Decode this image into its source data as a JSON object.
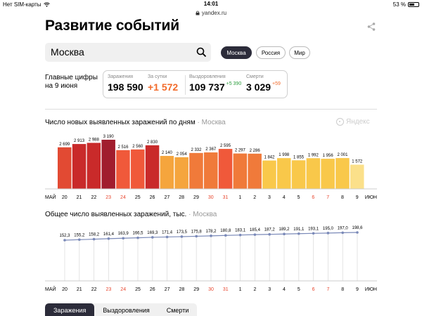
{
  "status_bar": {
    "carrier": "Нет SIM-карты",
    "time": "14:01",
    "battery": "53 %",
    "url": "yandex.ru"
  },
  "page_title": "Развитие событий",
  "search": {
    "value": "Москва"
  },
  "scope_buttons": [
    {
      "label": "Москва",
      "active": true
    },
    {
      "label": "Россия",
      "active": false
    },
    {
      "label": "Мир",
      "active": false
    }
  ],
  "key_figures": {
    "title_line1": "Главные цифры",
    "title_line2": "на 9 июня",
    "stats": [
      {
        "label": "Заражения",
        "value": "198 590",
        "delta": ""
      },
      {
        "label": "За сутки",
        "value": "+1 572",
        "delta": ""
      },
      {
        "label": "Выздоровления",
        "value": "109 737",
        "delta": "+5 390"
      },
      {
        "label": "Смерти",
        "value": "3 029",
        "delta": "+59"
      }
    ]
  },
  "yandex_label": "Яндекс",
  "tabs": [
    {
      "label": "Заражения",
      "active": true
    },
    {
      "label": "Выздоровления",
      "active": false
    },
    {
      "label": "Смерти",
      "active": false
    }
  ],
  "colors": {
    "accent_dark": "#2c2c3a",
    "orange": "#f26b2b",
    "green": "#2e9e3f",
    "red_axis_label": "#e8462e"
  },
  "chart_data": [
    {
      "type": "bar",
      "title": "Число новых выявленных заражений по дням",
      "subtitle": "Москва",
      "month_start_label": "МАЙ",
      "month_end_label": "ИЮН",
      "categories": [
        "20",
        "21",
        "22",
        "23",
        "24",
        "25",
        "26",
        "27",
        "28",
        "29",
        "30",
        "31",
        "1",
        "2",
        "3",
        "4",
        "5",
        "6",
        "7",
        "8",
        "9"
      ],
      "weekend_days": [
        "23",
        "24",
        "30",
        "31",
        "6",
        "7"
      ],
      "values": [
        2699,
        2913,
        2988,
        3190,
        2516,
        2560,
        2830,
        2140,
        2054,
        2332,
        2367,
        2595,
        2297,
        2286,
        1842,
        1998,
        1855,
        1992,
        1956,
        2001,
        1572
      ],
      "value_labels": [
        "2 699",
        "2 913",
        "2 988",
        "3 190",
        "2 516",
        "2 560",
        "2 830",
        "2 140",
        "2 054",
        "2 332",
        "2 367",
        "2 595",
        "2 297",
        "2 286",
        "1 842",
        "1 998",
        "1 855",
        "1 992",
        "1 956",
        "2 001",
        "1 572"
      ],
      "bar_colors": [
        "#e24a33",
        "#c92a2a",
        "#c92a2a",
        "#a11d2e",
        "#f0593a",
        "#f0593a",
        "#c92a2a",
        "#f5a53d",
        "#f5a53d",
        "#f07a3a",
        "#f07a3a",
        "#f0593a",
        "#f07a3a",
        "#f07a3a",
        "#f9c84a",
        "#f9c84a",
        "#f9c84a",
        "#f9c84a",
        "#f9c84a",
        "#f9c84a",
        "#fbe08a"
      ],
      "ylim": [
        0,
        3300
      ]
    },
    {
      "type": "line",
      "title": "Общее число выявленных заражений, тыс.",
      "subtitle": "Москва",
      "month_start_label": "МАЙ",
      "month_end_label": "ИЮН",
      "categories": [
        "20",
        "21",
        "22",
        "23",
        "24",
        "25",
        "26",
        "27",
        "28",
        "29",
        "30",
        "31",
        "1",
        "2",
        "3",
        "4",
        "5",
        "6",
        "7",
        "8",
        "9"
      ],
      "weekend_days": [
        "23",
        "24",
        "30",
        "31",
        "6",
        "7"
      ],
      "values": [
        152.3,
        155.2,
        158.2,
        161.4,
        163.9,
        166.5,
        169.3,
        171.4,
        173.5,
        175.8,
        178.2,
        180.8,
        183.1,
        185.4,
        187.2,
        189.2,
        191.1,
        193.1,
        195.0,
        197.0,
        198.6
      ],
      "value_labels": [
        "152,3",
        "155,2",
        "158,2",
        "161,4",
        "163,9",
        "166,5",
        "169,3",
        "171,4",
        "173,5",
        "175,8",
        "178,2",
        "180,8",
        "183,1",
        "185,4",
        "187,2",
        "189,2",
        "191,1",
        "193,1",
        "195,0",
        "197,0",
        "198,6"
      ],
      "line_color": "#7a89b8",
      "ylim": [
        0,
        210
      ]
    }
  ]
}
